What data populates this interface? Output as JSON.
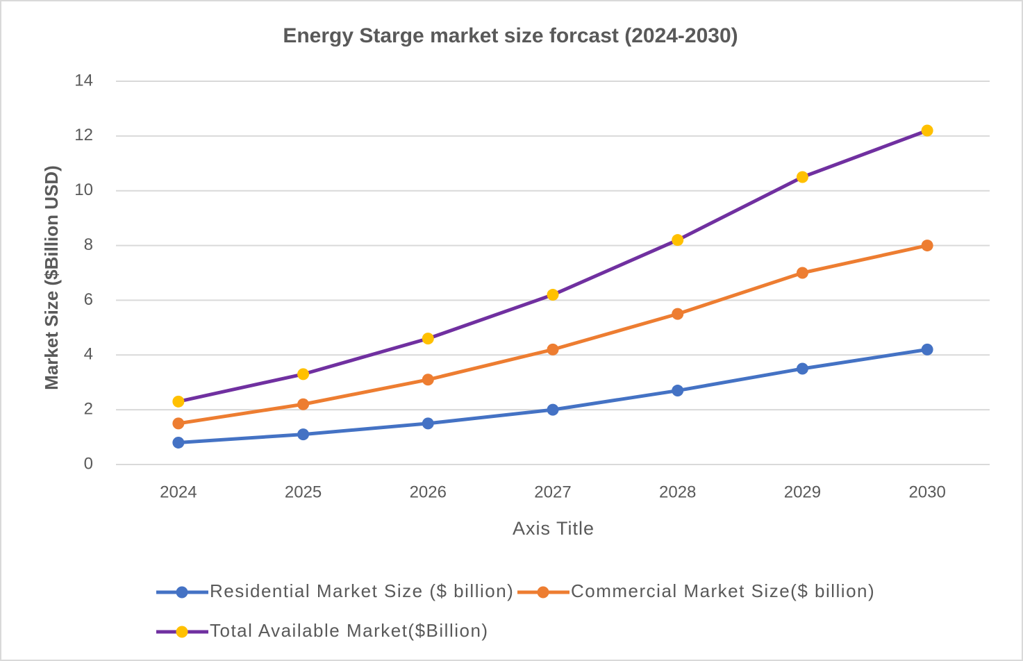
{
  "chart_data": {
    "type": "line",
    "title": "Energy Starge market size forcast (2024-2030)",
    "x_label": "Axis Title",
    "y_label": "Market Size ($Billion USD)",
    "categories": [
      "2024",
      "2025",
      "2026",
      "2027",
      "2028",
      "2029",
      "2030"
    ],
    "series": [
      {
        "name": "Residential Market Size ($ billion)",
        "color": "#4472c4",
        "marker_color": "#4472c4",
        "values": [
          0.8,
          1.1,
          1.5,
          2.0,
          2.7,
          3.5,
          4.2
        ]
      },
      {
        "name": "Commercial Market Size($ billion)",
        "color": "#ed7d31",
        "marker_color": "#ed7d31",
        "values": [
          1.5,
          2.2,
          3.1,
          4.2,
          5.5,
          7.0,
          8.0
        ]
      },
      {
        "name": "Total Available Market($Billion)",
        "color": "#7030a0",
        "marker_color": "#ffc000",
        "values": [
          2.3,
          3.3,
          4.6,
          6.2,
          8.2,
          10.5,
          12.2
        ]
      }
    ],
    "ylim": [
      0,
      14
    ],
    "yticks": [
      0,
      2,
      4,
      6,
      8,
      10,
      12,
      14
    ],
    "grid": true,
    "legend": "bottom"
  }
}
